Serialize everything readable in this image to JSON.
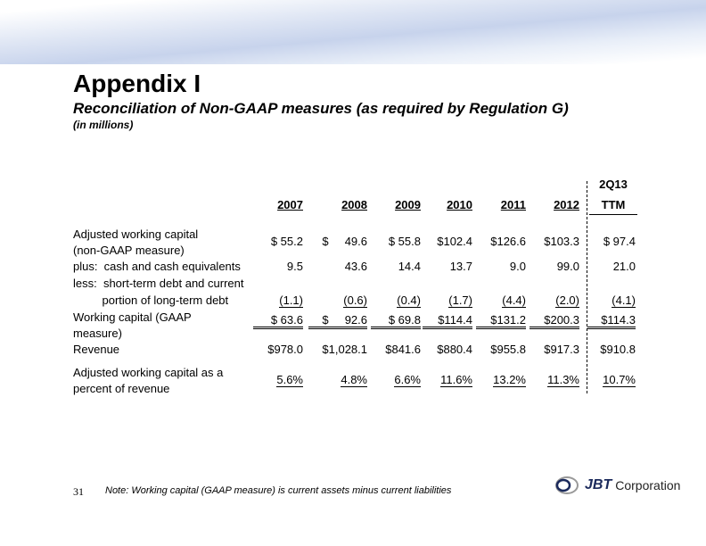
{
  "title": "Appendix I",
  "subtitle": "Reconciliation of Non-GAAP measures (as required by Regulation G)",
  "units": "(in millions)",
  "columns": [
    "2007",
    "2008",
    "2009",
    "2010",
    "2011",
    "2012"
  ],
  "ttm_header": {
    "line1": "2Q13",
    "line2": "TTM"
  },
  "rows": [
    {
      "label": [
        "Adjusted working capital",
        "(non-GAAP measure)"
      ],
      "values": [
        "$ 55.2",
        "$     49.6",
        "$ 55.8",
        "$102.4",
        "$126.6",
        "$103.3",
        "$ 97.4"
      ]
    },
    {
      "label": [
        "plus:  cash and cash equivalents"
      ],
      "values": [
        "9.5",
        "43.6",
        "14.4",
        "13.7",
        "9.0",
        "99.0",
        "21.0"
      ]
    },
    {
      "label": [
        "less:  short-term debt and current"
      ],
      "values": []
    },
    {
      "label": [
        "         portion of long-term debt"
      ],
      "values": [
        "(1.1)",
        "(0.6)",
        "(0.4)",
        "(1.7)",
        "(4.4)",
        "(2.0)",
        "(4.1)"
      ]
    },
    {
      "label": [
        "Working capital (GAAP",
        "measure)"
      ],
      "values": [
        "$ 63.6",
        "$     92.6",
        "$ 69.8",
        "$114.4",
        "$131.2",
        "$200.3",
        "$114.3"
      ]
    },
    {
      "label": [
        "Revenue"
      ],
      "values": [
        "$978.0",
        "$1,028.1",
        "$841.6",
        "$880.4",
        "$955.8",
        "$917.3",
        "$910.8"
      ]
    },
    {
      "label": [
        "Adjusted working capital as a",
        "percent of revenue"
      ],
      "values": [
        "5.6%",
        "4.8%",
        "6.6%",
        "11.6%",
        "13.2%",
        "11.3%",
        "10.7%"
      ]
    }
  ],
  "page_number": "31",
  "note": "Note:  Working capital (GAAP measure) is current assets minus current liabilities",
  "logo": {
    "mark": "JBT",
    "text": "Corporation"
  }
}
